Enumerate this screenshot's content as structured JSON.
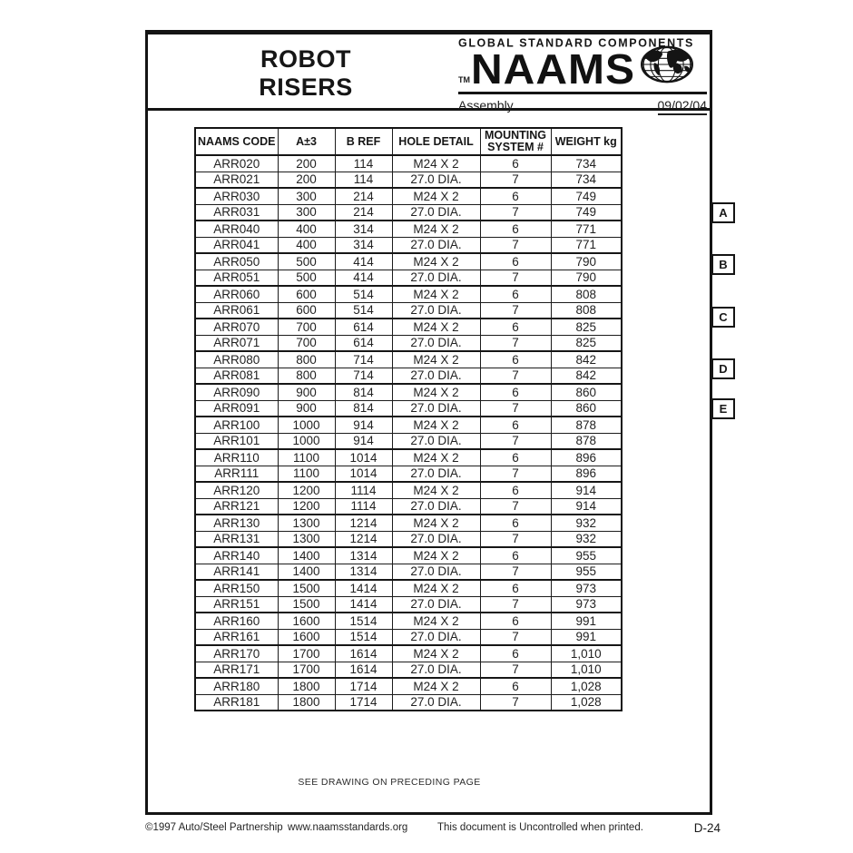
{
  "header": {
    "title_line1": "ROBOT",
    "title_line2": "RISERS",
    "tagline": "GLOBAL STANDARD COMPONENTS",
    "tm": "TM",
    "brand": "NAAMS",
    "category": "Assembly",
    "date": "09/02/04"
  },
  "table": {
    "headers": [
      "NAAMS CODE",
      "A±3",
      "B REF",
      "HOLE DETAIL",
      "MOUNTING SYSTEM #",
      "WEIGHT kg"
    ],
    "rows": [
      [
        "ARR020",
        "200",
        "114",
        "M24 X 2",
        "6",
        "734"
      ],
      [
        "ARR021",
        "200",
        "114",
        "27.0 DIA.",
        "7",
        "734"
      ],
      [
        "ARR030",
        "300",
        "214",
        "M24 X 2",
        "6",
        "749"
      ],
      [
        "ARR031",
        "300",
        "214",
        "27.0 DIA.",
        "7",
        "749"
      ],
      [
        "ARR040",
        "400",
        "314",
        "M24 X 2",
        "6",
        "771"
      ],
      [
        "ARR041",
        "400",
        "314",
        "27.0 DIA.",
        "7",
        "771"
      ],
      [
        "ARR050",
        "500",
        "414",
        "M24 X 2",
        "6",
        "790"
      ],
      [
        "ARR051",
        "500",
        "414",
        "27.0 DIA.",
        "7",
        "790"
      ],
      [
        "ARR060",
        "600",
        "514",
        "M24 X 2",
        "6",
        "808"
      ],
      [
        "ARR061",
        "600",
        "514",
        "27.0 DIA.",
        "7",
        "808"
      ],
      [
        "ARR070",
        "700",
        "614",
        "M24 X 2",
        "6",
        "825"
      ],
      [
        "ARR071",
        "700",
        "614",
        "27.0 DIA.",
        "7",
        "825"
      ],
      [
        "ARR080",
        "800",
        "714",
        "M24 X 2",
        "6",
        "842"
      ],
      [
        "ARR081",
        "800",
        "714",
        "27.0 DIA.",
        "7",
        "842"
      ],
      [
        "ARR090",
        "900",
        "814",
        "M24 X 2",
        "6",
        "860"
      ],
      [
        "ARR091",
        "900",
        "814",
        "27.0 DIA.",
        "7",
        "860"
      ],
      [
        "ARR100",
        "1000",
        "914",
        "M24 X 2",
        "6",
        "878"
      ],
      [
        "ARR101",
        "1000",
        "914",
        "27.0 DIA.",
        "7",
        "878"
      ],
      [
        "ARR110",
        "1100",
        "1014",
        "M24 X 2",
        "6",
        "896"
      ],
      [
        "ARR111",
        "1100",
        "1014",
        "27.0 DIA.",
        "7",
        "896"
      ],
      [
        "ARR120",
        "1200",
        "1114",
        "M24 X 2",
        "6",
        "914"
      ],
      [
        "ARR121",
        "1200",
        "1114",
        "27.0 DIA.",
        "7",
        "914"
      ],
      [
        "ARR130",
        "1300",
        "1214",
        "M24 X 2",
        "6",
        "932"
      ],
      [
        "ARR131",
        "1300",
        "1214",
        "27.0 DIA.",
        "7",
        "932"
      ],
      [
        "ARR140",
        "1400",
        "1314",
        "M24 X 2",
        "6",
        "955"
      ],
      [
        "ARR141",
        "1400",
        "1314",
        "27.0 DIA.",
        "7",
        "955"
      ],
      [
        "ARR150",
        "1500",
        "1414",
        "M24 X 2",
        "6",
        "973"
      ],
      [
        "ARR151",
        "1500",
        "1414",
        "27.0 DIA.",
        "7",
        "973"
      ],
      [
        "ARR160",
        "1600",
        "1514",
        "M24 X 2",
        "6",
        "991"
      ],
      [
        "ARR161",
        "1600",
        "1514",
        "27.0 DIA.",
        "7",
        "991"
      ],
      [
        "ARR170",
        "1700",
        "1614",
        "M24 X 2",
        "6",
        "1,010"
      ],
      [
        "ARR171",
        "1700",
        "1614",
        "27.0 DIA.",
        "7",
        "1,010"
      ],
      [
        "ARR180",
        "1800",
        "1714",
        "M24 X 2",
        "6",
        "1,028"
      ],
      [
        "ARR181",
        "1800",
        "1714",
        "27.0 DIA.",
        "7",
        "1,028"
      ]
    ]
  },
  "side_tabs": [
    "A",
    "B",
    "C",
    "D",
    "E"
  ],
  "note": "SEE DRAWING ON PRECEDING PAGE",
  "footer": {
    "copyright": "©1997 Auto/Steel Partnership",
    "website": "www.naamsstandards.org",
    "uncontrolled": "This document is Uncontrolled when printed.",
    "page_number": "D-24"
  },
  "colors": {
    "ink": "#1a1a1a",
    "paper": "#ffffff"
  }
}
